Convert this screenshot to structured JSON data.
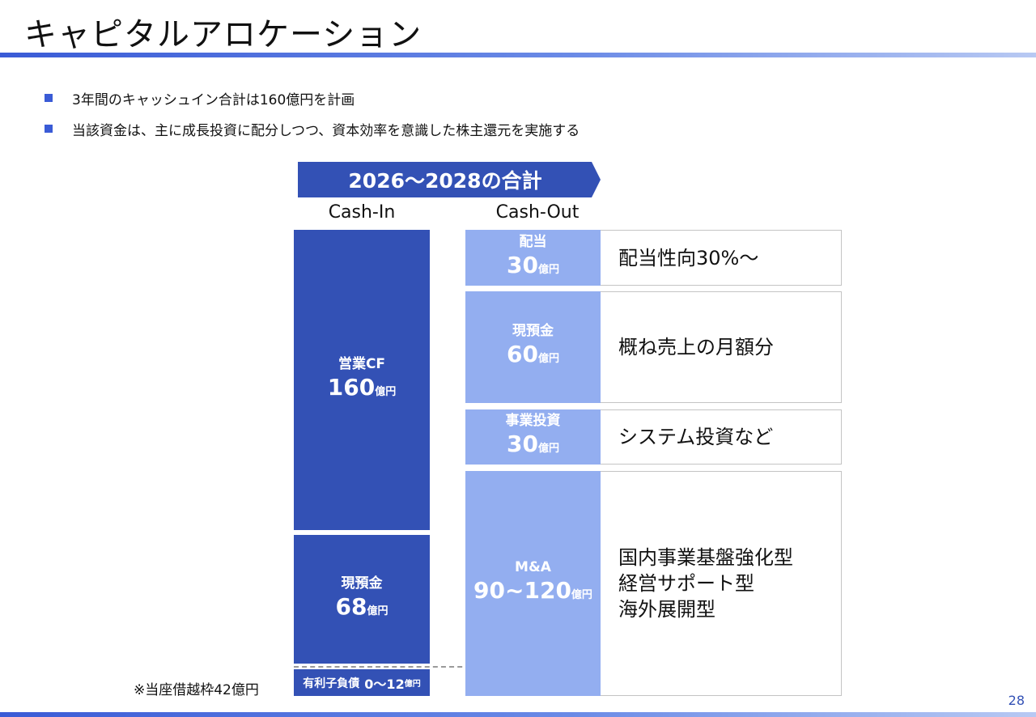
{
  "page": {
    "title": "キャピタルアロケーション",
    "page_number": "28"
  },
  "bullets": [
    {
      "text": "3年間のキャッシュイン合計は160億円を計画"
    },
    {
      "text": "当該資金は、主に成長投資に配分しつつ、資本効率を意識した株主還元を実施する"
    }
  ],
  "period_banner": "2026～2028の合計",
  "cash_in": {
    "header": "Cash-In",
    "blocks": [
      {
        "label": "営業CF",
        "amount": "160",
        "unit": "億円"
      },
      {
        "label": "現預金",
        "amount": "68",
        "unit": "億円"
      }
    ],
    "debt": {
      "label": "有利子負債",
      "amount": "0～12",
      "unit": "億円"
    },
    "note": "※当座借越枠42億円"
  },
  "cash_out": {
    "header": "Cash-Out",
    "items": [
      {
        "label": "配当",
        "amount": "30",
        "unit": "億円",
        "description": [
          "配当性向30%～"
        ]
      },
      {
        "label": "現預金",
        "amount": "60",
        "unit": "億円",
        "description": [
          "概ね売上の月額分"
        ]
      },
      {
        "label": "事業投資",
        "amount": "30",
        "unit": "億円",
        "description": [
          "システム投資など"
        ]
      },
      {
        "label": "M&A",
        "amount": "90~120",
        "unit": "億円",
        "description": [
          "国内事業基盤強化型",
          "経営サポート型",
          "海外展開型"
        ]
      }
    ]
  },
  "colors": {
    "dark_blue": "#3351b5",
    "light_blue": "#93aef0",
    "accent": "#3a5bd6"
  }
}
